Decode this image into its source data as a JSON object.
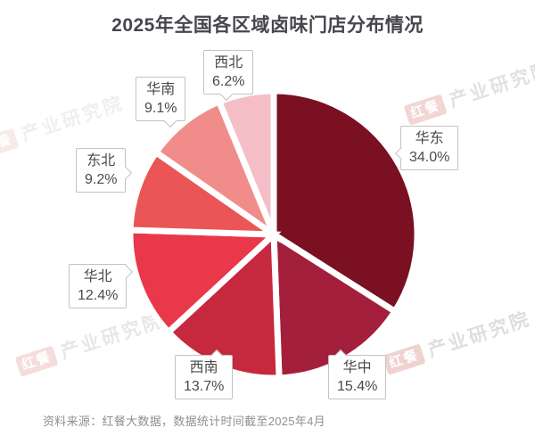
{
  "page": {
    "title": "2025年全国各区域卤味门店分布情况",
    "source_note": "资料来源：红餐大数据，数据统计时间截至2025年4月"
  },
  "watermark": {
    "logo_text": "红餐",
    "brand_text": "产业研究院"
  },
  "chart_data": {
    "type": "pie",
    "title": "2025年全国各区域卤味门店分布情况",
    "unit": "%",
    "direction": "clockwise",
    "start_angle": "12-oclock",
    "legend": "none",
    "slices": [
      {
        "name": "华东",
        "value": 34.0,
        "label": "34.0%",
        "color": "#7A1022"
      },
      {
        "name": "华中",
        "value": 15.4,
        "label": "15.4%",
        "color": "#A41F3C"
      },
      {
        "name": "西南",
        "value": 13.7,
        "label": "13.7%",
        "color": "#C6283E"
      },
      {
        "name": "华北",
        "value": 12.4,
        "label": "12.4%",
        "color": "#E9384A"
      },
      {
        "name": "东北",
        "value": 9.2,
        "label": "9.2%",
        "color": "#EA5555"
      },
      {
        "name": "华南",
        "value": 9.1,
        "label": "9.1%",
        "color": "#F08C8A"
      },
      {
        "name": "西北",
        "value": 6.2,
        "label": "6.2%",
        "color": "#F5BEC6"
      }
    ]
  }
}
